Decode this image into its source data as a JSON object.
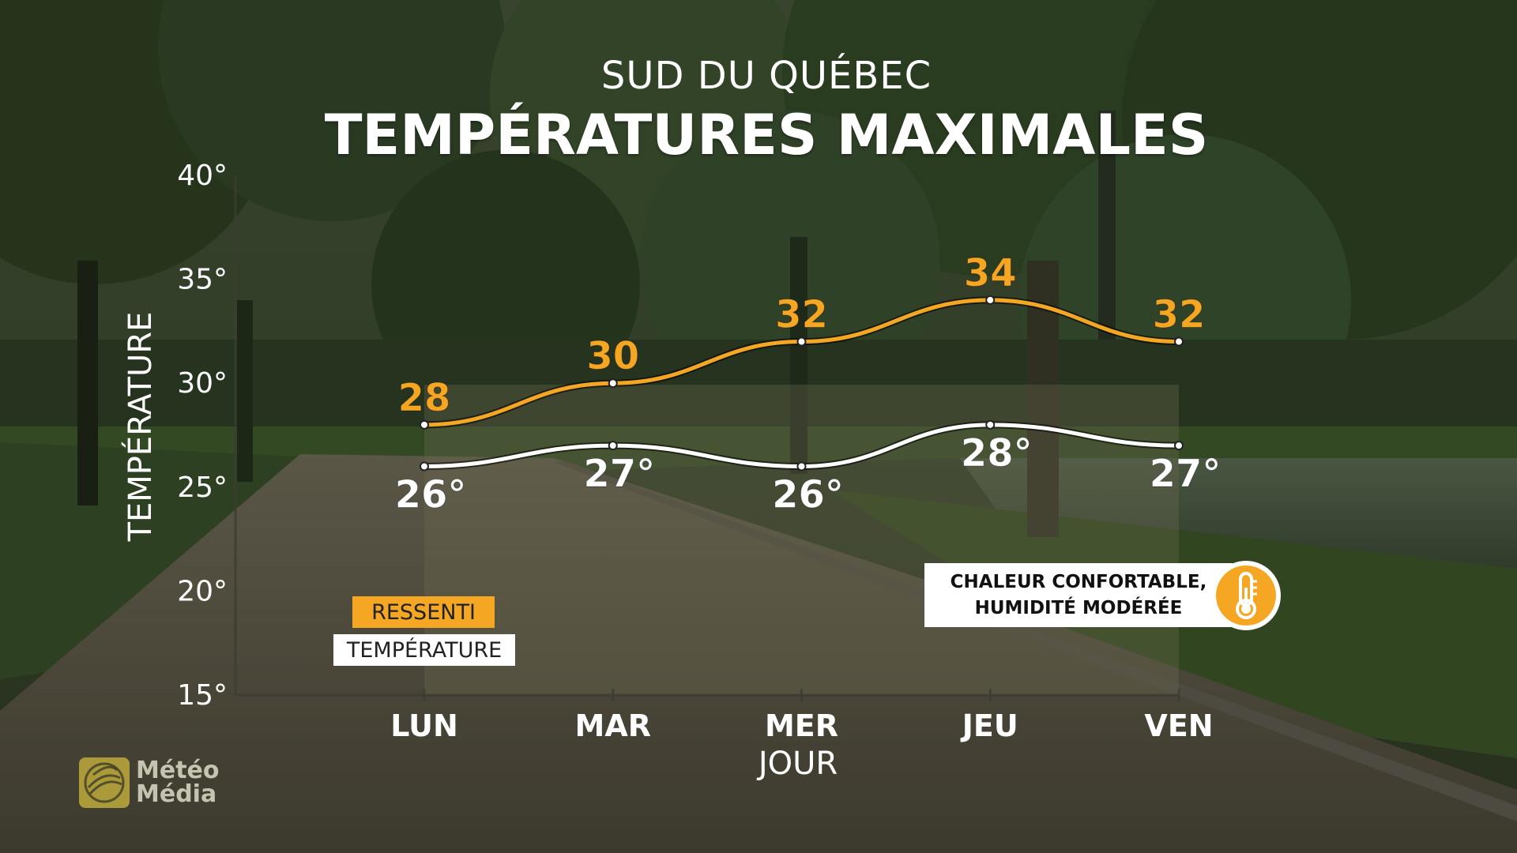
{
  "header": {
    "region": "SUD DU QUÉBEC",
    "title": "TEMPÉRATURES MAXIMALES"
  },
  "chart_data": {
    "type": "line",
    "xlabel": "JOUR",
    "ylabel": "TEMPÉRATURE",
    "ylim": [
      15,
      40
    ],
    "y_ticks": [
      "15°",
      "20°",
      "25°",
      "30°",
      "35°",
      "40°"
    ],
    "categories": [
      "LUN",
      "MAR",
      "MER",
      "JEU",
      "VEN"
    ],
    "series": [
      {
        "name": "RESSENTI",
        "values": [
          28,
          30,
          32,
          34,
          32
        ],
        "labels": [
          "28",
          "30",
          "32",
          "34",
          "32"
        ],
        "color": "#f5a623"
      },
      {
        "name": "TEMPÉRATURE",
        "values": [
          26,
          27,
          26,
          28,
          27
        ],
        "labels": [
          "26°",
          "27°",
          "26°",
          "28°",
          "27°"
        ],
        "color": "#ffffff"
      }
    ]
  },
  "callout": {
    "line1": "CHALEUR CONFORTABLE,",
    "line2": "HUMIDITÉ MODÉRÉE",
    "icon": "thermometer-icon",
    "icon_color": "#f5a623"
  },
  "logo": {
    "line1": "Météo",
    "line2": "Média",
    "icon": "globe-icon"
  },
  "colors": {
    "accent": "#f5a623",
    "text": "#ffffff",
    "plot_overlay": "#6a6a55"
  }
}
